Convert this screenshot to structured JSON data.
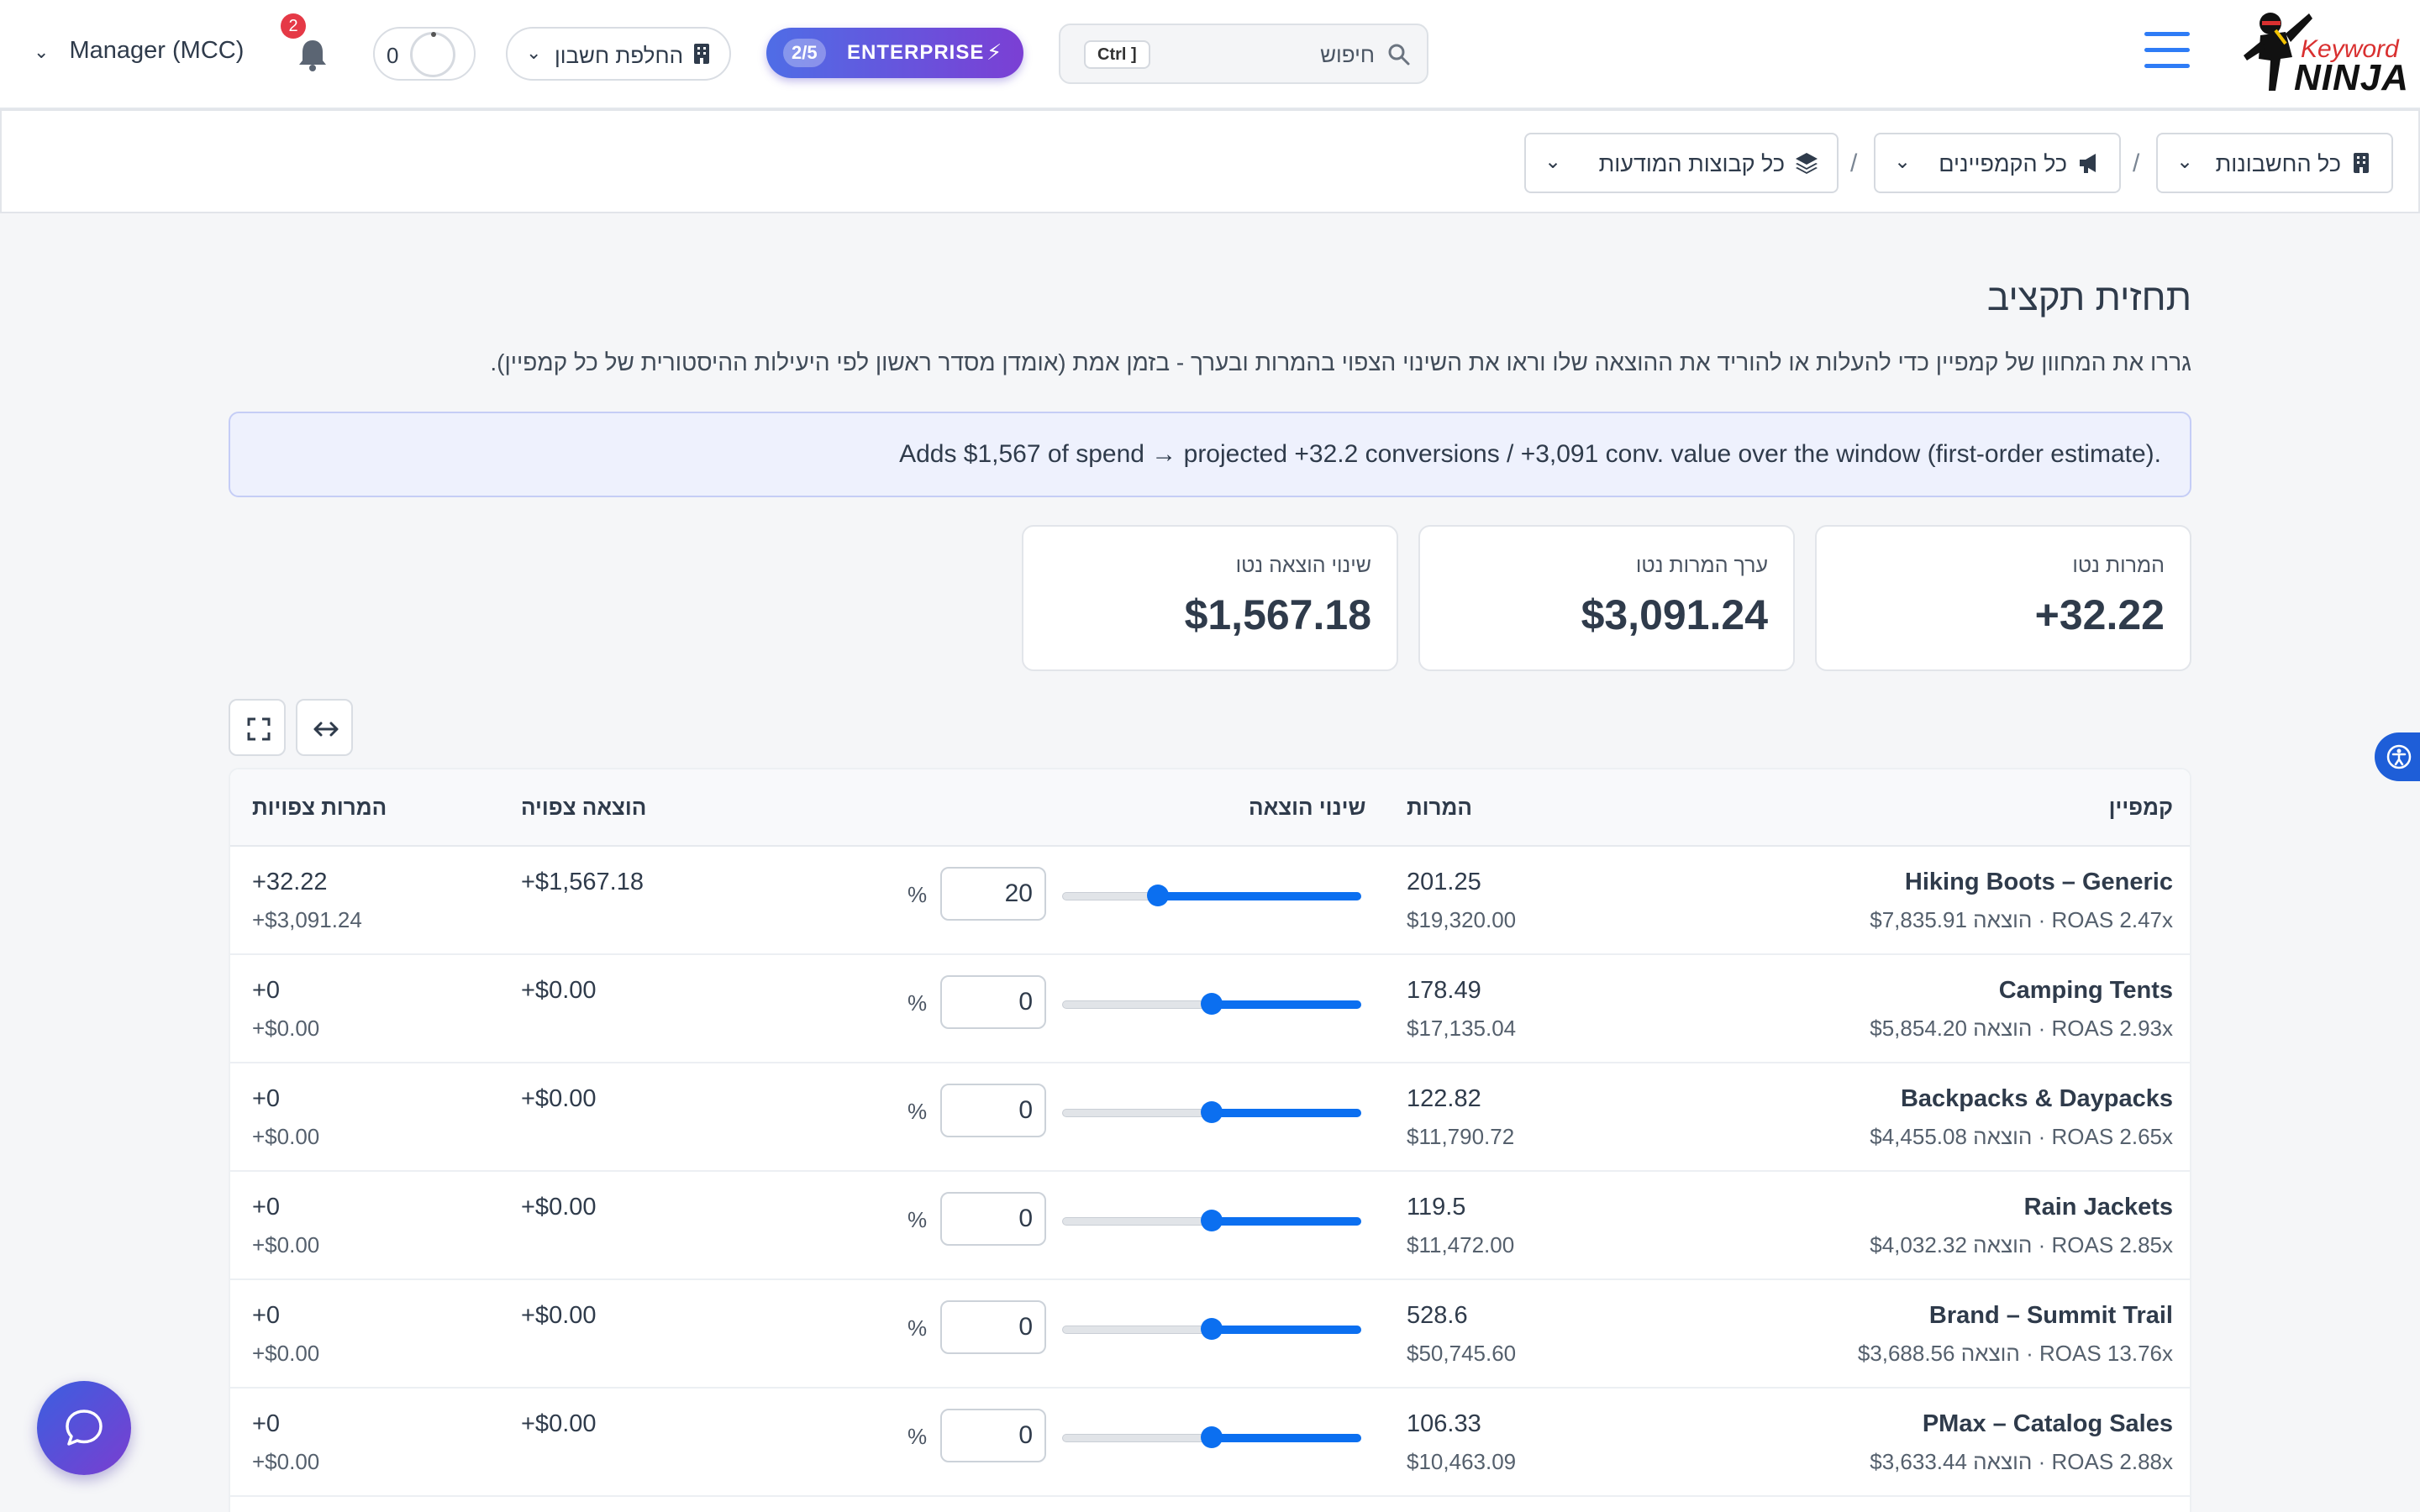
{
  "header": {
    "logo_word1": "Keyword",
    "logo_word2": "NINJA",
    "search_placeholder": "חיפוש",
    "search_shortcut": "Ctrl ]",
    "plan_label": "ENTERPRISE",
    "plan_count": "2/5",
    "switch_account_label": "החלפת חשבון",
    "loader_count": "0",
    "notification_count": "2",
    "manager_label": "Manager (MCC)"
  },
  "breadcrumb": {
    "accounts": "כל החשבונות",
    "campaigns": "כל הקמפיינים",
    "ad_groups": "כל קבוצות המודעות",
    "separator": "/"
  },
  "page": {
    "title": "תחזית תקציב",
    "title_icon": "",
    "description": "גררו את המחוון של קמפיין כדי להעלות או להוריד את ההוצאה שלו וראו את השינוי הצפוי בהמרות ובערך - בזמן אמת (אומדן מסדר ראשון לפי היעילות ההיסטורית של כל קמפיין).",
    "info_message": "Adds $1,567 of spend → projected +32.2 conversions / +3,091 conv. value over the window (first-order estimate)."
  },
  "kpis": {
    "net_conversions_label": "המרות נטו",
    "net_conversions_value": "+32.22",
    "net_value_label": "ערך המרות נטו",
    "net_value_value": "$3,091.24",
    "net_spend_label": "שינוי הוצאה נטו",
    "net_spend_value": "$1,567.18"
  },
  "table": {
    "headers": {
      "campaign": "קמפיין",
      "conversions": "המרות",
      "spend_change": "שינוי הוצאה",
      "projected_spend": "הוצאה צפויה",
      "projected_conversions": "המרות צפויות"
    },
    "pct_sign": "%",
    "rows": [
      {
        "name": "Hiking Boots – Generic",
        "sub": "$7,835.91 הוצאה · ROAS 2.47x",
        "conv": "201.25",
        "value": "$19,320.00",
        "pct": "20",
        "slider_fraction": 0.68,
        "proj_spend": "+$1,567.18",
        "proj_conv": "+32.22",
        "proj_value": "+$3,091.24"
      },
      {
        "name": "Camping Tents",
        "sub": "$5,854.20 הוצאה · ROAS 2.93x",
        "conv": "178.49",
        "value": "$17,135.04",
        "pct": "0",
        "slider_fraction": 0.5,
        "proj_spend": "+$0.00",
        "proj_conv": "+0",
        "proj_value": "+$0.00"
      },
      {
        "name": "Backpacks & Daypacks",
        "sub": "$4,455.08 הוצאה · ROAS 2.65x",
        "conv": "122.82",
        "value": "$11,790.72",
        "pct": "0",
        "slider_fraction": 0.5,
        "proj_spend": "+$0.00",
        "proj_conv": "+0",
        "proj_value": "+$0.00"
      },
      {
        "name": "Rain Jackets",
        "sub": "$4,032.32 הוצאה · ROAS 2.85x",
        "conv": "119.5",
        "value": "$11,472.00",
        "pct": "0",
        "slider_fraction": 0.5,
        "proj_spend": "+$0.00",
        "proj_conv": "+0",
        "proj_value": "+$0.00"
      },
      {
        "name": "Brand – Summit Trail",
        "sub": "$3,688.56 הוצאה · ROAS 13.76x",
        "conv": "528.6",
        "value": "$50,745.60",
        "pct": "0",
        "slider_fraction": 0.5,
        "proj_spend": "+$0.00",
        "proj_conv": "+0",
        "proj_value": "+$0.00"
      },
      {
        "name": "PMax – Catalog Sales",
        "sub": "$3,633.44 הוצאה · ROAS 2.88x",
        "conv": "106.33",
        "value": "$10,463.09",
        "pct": "0",
        "slider_fraction": 0.5,
        "proj_spend": "+$0.00",
        "proj_conv": "+0",
        "proj_value": "+$0.00"
      }
    ]
  },
  "colors": {
    "accent": "#0b6ff0",
    "plan_gradient_start": "#4f6de6",
    "plan_gradient_end": "#7b3fd4",
    "badge": "#e53946"
  }
}
